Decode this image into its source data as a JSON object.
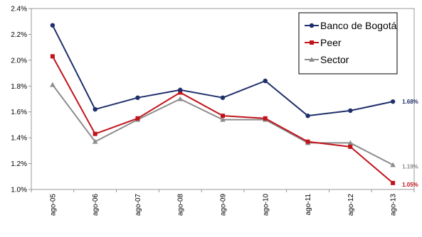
{
  "chart_data": {
    "type": "line",
    "categories": [
      "ago-05",
      "ago-06",
      "ago-07",
      "ago-08",
      "ago-09",
      "ago-10",
      "ago-11",
      "ago-12",
      "ago-13"
    ],
    "series": [
      {
        "name": "Banco de Bogotá",
        "values": [
          2.27,
          1.62,
          1.71,
          1.77,
          1.71,
          1.84,
          1.57,
          1.61,
          1.68
        ],
        "color": "#1f2f6b",
        "marker": "circle"
      },
      {
        "name": "Peer",
        "values": [
          2.03,
          1.43,
          1.55,
          1.75,
          1.57,
          1.55,
          1.37,
          1.33,
          1.05
        ],
        "color": "#c0141b",
        "marker": "square"
      },
      {
        "name": "Sector",
        "values": [
          1.81,
          1.37,
          1.54,
          1.7,
          1.54,
          1.54,
          1.36,
          1.36,
          1.19
        ],
        "color": "#8c8c8c",
        "marker": "triangle"
      }
    ],
    "yticks": [
      "1.0%",
      "1.2%",
      "1.4%",
      "1.6%",
      "1.8%",
      "2.0%",
      "2.2%",
      "2.4%"
    ],
    "ylim": [
      1.0,
      2.4
    ],
    "data_labels": [
      {
        "series": "Banco de Bogotá",
        "text": "1.68%",
        "color": "#1f2f6b"
      },
      {
        "series": "Sector",
        "text": "1.19%",
        "color": "#8c8c8c"
      },
      {
        "series": "Peer",
        "text": "1.05%",
        "color": "#c0141b"
      }
    ],
    "legend_position": "top-right",
    "grid": false
  }
}
